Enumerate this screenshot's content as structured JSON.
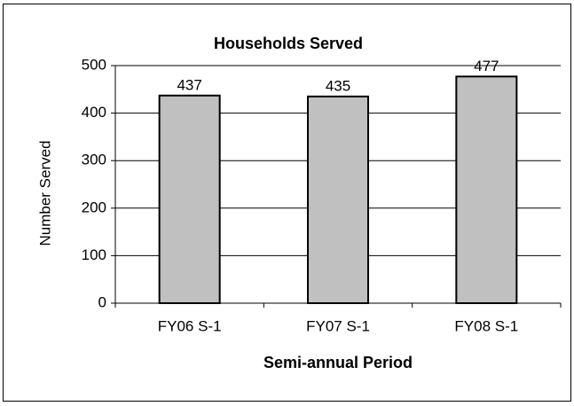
{
  "chart_data": {
    "type": "bar",
    "title": "Households Served",
    "x_label": "Semi-annual Period",
    "y_label": "Number Served",
    "categories": [
      "FY06 S-1",
      "FY07 S-1",
      "FY08 S-1"
    ],
    "values": [
      437,
      435,
      477
    ],
    "color": "#c0c0c0",
    "ylim": [
      0,
      500
    ],
    "yticks": [
      0,
      100,
      200,
      300,
      400,
      500
    ],
    "grid": true
  }
}
